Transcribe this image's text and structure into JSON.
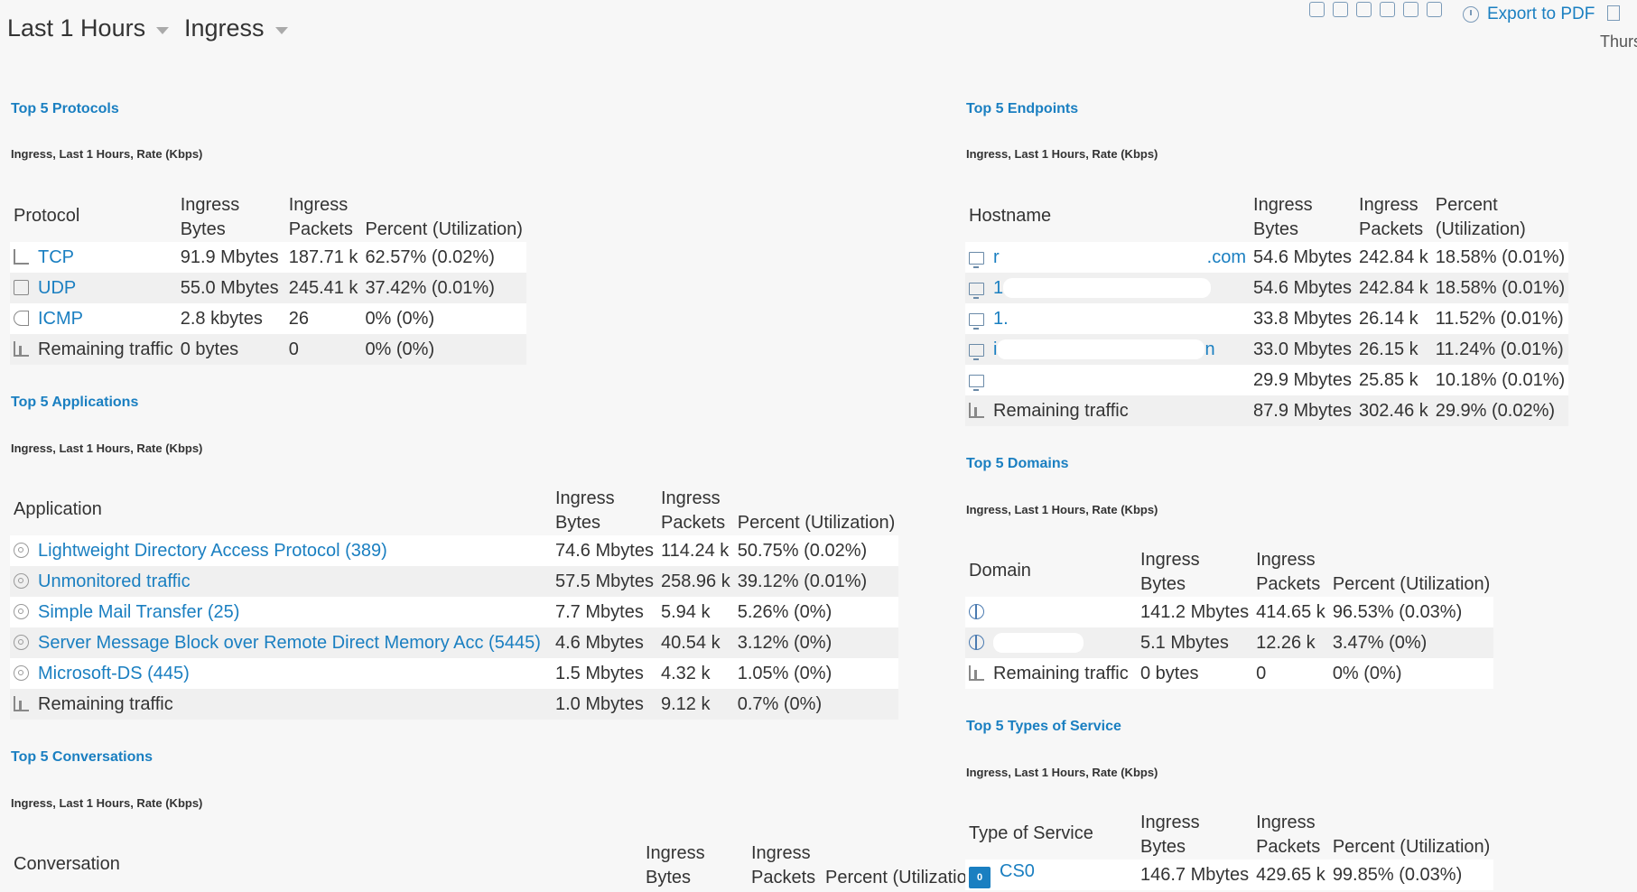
{
  "header": {
    "time_range": "Last 1 Hours",
    "direction": "Ingress",
    "export_label": "Export to PDF",
    "date_partial": "Thurs"
  },
  "protocols": {
    "title": "Top 5 Protocols",
    "subtitle": "Ingress, Last 1 Hours, Rate (Kbps)",
    "columns": [
      "Protocol",
      "Ingress Bytes",
      "Ingress Packets",
      "Percent (Utilization)"
    ],
    "rows": [
      {
        "icon": "network-icon",
        "name": "TCP",
        "bytes": "91.9 Mbytes",
        "packets": "187.71 k",
        "percent": "62.57% (0.02%)"
      },
      {
        "icon": "clipboard-icon",
        "name": "UDP",
        "bytes": "55.0 Mbytes",
        "packets": "245.41 k",
        "percent": "37.42% (0.01%)"
      },
      {
        "icon": "speaker-icon",
        "name": "ICMP",
        "bytes": "2.8 kbytes",
        "packets": "26",
        "percent": "0% (0%)"
      },
      {
        "icon": "remaining-traffic-icon",
        "name": "Remaining traffic",
        "bytes": "0 bytes",
        "packets": "0",
        "percent": "0% (0%)"
      }
    ]
  },
  "applications": {
    "title": "Top 5 Applications",
    "subtitle": "Ingress, Last 1 Hours, Rate (Kbps)",
    "columns": [
      "Application",
      "Ingress Bytes",
      "Ingress Packets",
      "Percent (Utilization)"
    ],
    "rows": [
      {
        "icon": "gear-icon",
        "name": "Lightweight Directory Access Protocol (389)",
        "bytes": "74.6 Mbytes",
        "packets": "114.24 k",
        "percent": "50.75% (0.02%)"
      },
      {
        "icon": "gear-icon",
        "name": "Unmonitored traffic",
        "bytes": "57.5 Mbytes",
        "packets": "258.96 k",
        "percent": "39.12% (0.01%)"
      },
      {
        "icon": "gear-icon",
        "name": "Simple Mail Transfer (25)",
        "bytes": "7.7 Mbytes",
        "packets": "5.94 k",
        "percent": "5.26% (0%)"
      },
      {
        "icon": "gear-icon",
        "name": "Server Message Block over Remote Direct Memory Acc (5445)",
        "bytes": "4.6 Mbytes",
        "packets": "40.54 k",
        "percent": "3.12% (0%)"
      },
      {
        "icon": "gear-icon",
        "name": "Microsoft-DS (445)",
        "bytes": "1.5 Mbytes",
        "packets": "4.32 k",
        "percent": "1.05% (0%)"
      },
      {
        "icon": "remaining-traffic-icon",
        "name": "Remaining traffic",
        "bytes": "1.0 Mbytes",
        "packets": "9.12 k",
        "percent": "0.7% (0%)"
      }
    ]
  },
  "conversations": {
    "title": "Top 5 Conversations",
    "subtitle": "Ingress, Last 1 Hours, Rate (Kbps)",
    "columns": [
      "Conversation",
      "Ingress Bytes",
      "Ingress Packets",
      "Percent (Utilization)"
    ]
  },
  "endpoints": {
    "title": "Top 5 Endpoints",
    "subtitle": "Ingress, Last 1 Hours, Rate (Kbps)",
    "columns": [
      "Hostname",
      "Ingress Bytes",
      "Ingress Packets",
      "Percent (Utilization)"
    ],
    "rows": [
      {
        "icon": "monitor-icon",
        "name": "r",
        "suffix": ".com",
        "bytes": "54.6 Mbytes",
        "packets": "242.84 k",
        "percent": "18.58% (0.01%)"
      },
      {
        "icon": "monitor-icon",
        "name": "1",
        "suffix": "",
        "bytes": "54.6 Mbytes",
        "packets": "242.84 k",
        "percent": "18.58% (0.01%)"
      },
      {
        "icon": "monitor-icon",
        "name": "1.",
        "suffix": "",
        "bytes": "33.8 Mbytes",
        "packets": "26.14 k",
        "percent": "11.52% (0.01%)"
      },
      {
        "icon": "monitor-icon",
        "name": "i",
        "suffix": "n",
        "bytes": "33.0 Mbytes",
        "packets": "26.15 k",
        "percent": "11.24% (0.01%)"
      },
      {
        "icon": "monitor-icon",
        "name": "",
        "suffix": "",
        "bytes": "29.9 Mbytes",
        "packets": "25.85 k",
        "percent": "10.18% (0.01%)"
      },
      {
        "icon": "remaining-traffic-icon",
        "name": "Remaining traffic",
        "suffix": "",
        "bytes": "87.9 Mbytes",
        "packets": "302.46 k",
        "percent": "29.9% (0.02%)"
      }
    ]
  },
  "domains": {
    "title": "Top 5 Domains",
    "subtitle": "Ingress, Last 1 Hours, Rate (Kbps)",
    "columns": [
      "Domain",
      "Ingress Bytes",
      "Ingress Packets",
      "Percent (Utilization)"
    ],
    "rows": [
      {
        "icon": "globe-icon",
        "name": "",
        "bytes": "141.2 Mbytes",
        "packets": "414.65 k",
        "percent": "96.53% (0.03%)"
      },
      {
        "icon": "globe-icon",
        "name": "",
        "bytes": "5.1 Mbytes",
        "packets": "12.26 k",
        "percent": "3.47% (0%)"
      },
      {
        "icon": "remaining-traffic-icon",
        "name": "Remaining traffic",
        "bytes": "0 bytes",
        "packets": "0",
        "percent": "0% (0%)"
      }
    ]
  },
  "tos": {
    "title": "Top 5 Types of Service",
    "subtitle": "Ingress, Last 1 Hours, Rate (Kbps)",
    "columns": [
      "Type of Service",
      "Ingress Bytes",
      "Ingress Packets",
      "Percent (Utilization)"
    ],
    "rows": [
      {
        "icon": "cs0-badge-icon",
        "badge": "0",
        "name": "CS0",
        "bytes": "146.7 Mbytes",
        "packets": "429.65 k",
        "percent": "99.85% (0.03%)"
      }
    ]
  }
}
